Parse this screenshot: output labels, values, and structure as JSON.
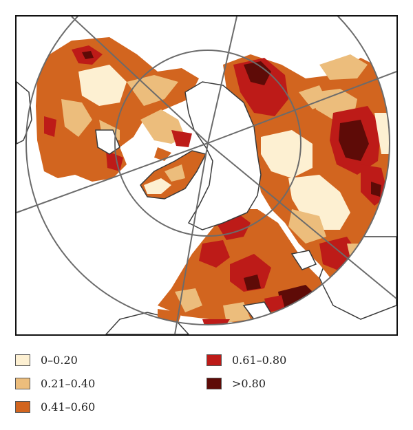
{
  "legend": {
    "items": [
      {
        "label": "0–0.20",
        "color": "#fdf0d2"
      },
      {
        "label": "0.21–0.40",
        "color": "#ecbd7c"
      },
      {
        "label": "0.41–0.60",
        "color": "#d2651f"
      },
      {
        "label": "0.61–0.80",
        "color": "#bd1b18"
      },
      {
        "label": ">0.80",
        "color": "#5e0b07"
      }
    ]
  },
  "map": {
    "projection": "north-polar-stereographic",
    "graticule_color": "#6b6b6b",
    "coastline_color": "#3a3a3a"
  }
}
